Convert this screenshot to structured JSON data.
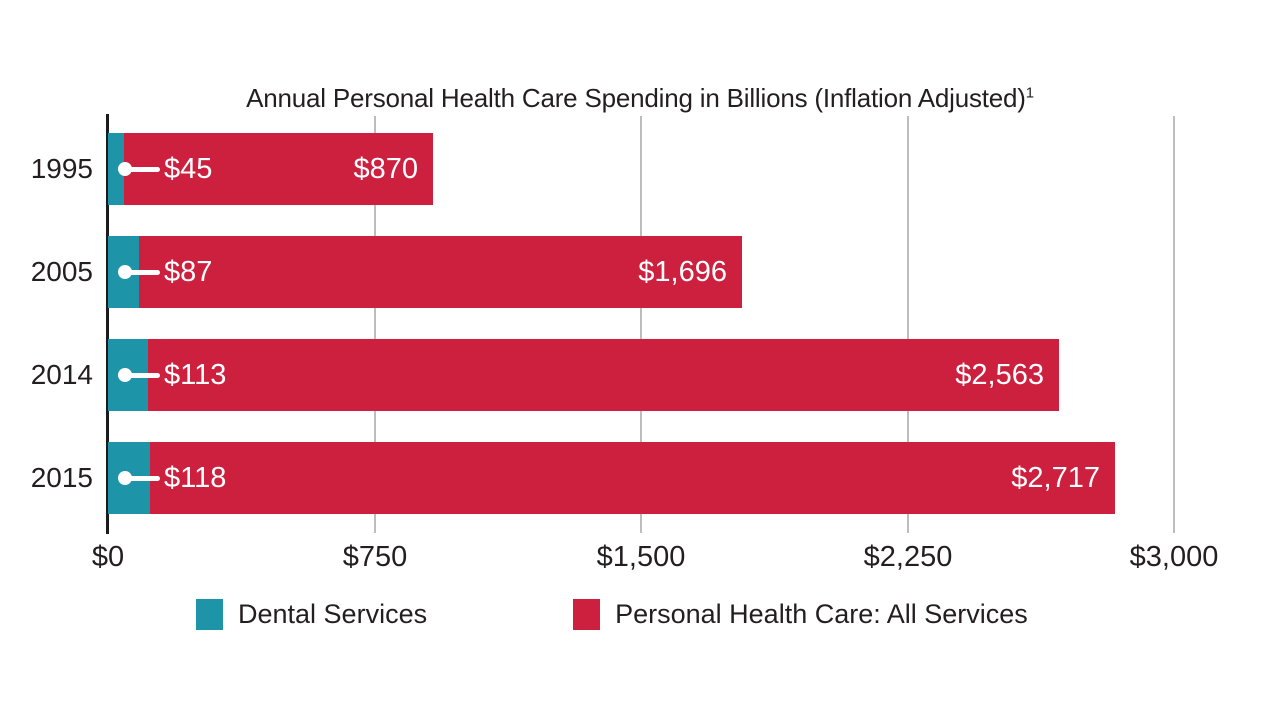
{
  "chart_data": {
    "type": "bar",
    "orientation": "horizontal",
    "stacked": true,
    "title": "Annual Personal Health Care Spending in Billions (Inflation Adjusted)",
    "title_superscript": "1",
    "categories": [
      "1995",
      "2005",
      "2014",
      "2015"
    ],
    "series": [
      {
        "name": "Dental Services",
        "color": "#1D94A8",
        "values": [
          45,
          87,
          113,
          118
        ],
        "labels": [
          "$45",
          "$87",
          "$113",
          "$118"
        ]
      },
      {
        "name": "Personal Health Care: All Services",
        "color": "#CD203E",
        "values": [
          870,
          1696,
          2563,
          2717
        ],
        "labels": [
          "$870",
          "$1,696",
          "$2,563",
          "$2,717"
        ]
      }
    ],
    "x_axis": {
      "min": 0,
      "max": 3000,
      "ticks": [
        0,
        750,
        1500,
        2250,
        3000
      ],
      "tick_labels": [
        "$0",
        "$750",
        "$1,500",
        "$2,250",
        "$3,000"
      ]
    },
    "grid": true,
    "legend_position": "bottom",
    "legend": [
      {
        "label": "Dental Services",
        "color": "#1D94A8"
      },
      {
        "label": "Personal Health Care: All Services",
        "color": "#CD203E"
      }
    ]
  },
  "style": {
    "background": "#FFFFFF",
    "text_color": "#231F20",
    "gridline_color": "#BDBDBD",
    "axis_color": "#1B1B1B",
    "bar_value_color": "#FFFFFF",
    "callout_color": "#FFFFFF"
  }
}
